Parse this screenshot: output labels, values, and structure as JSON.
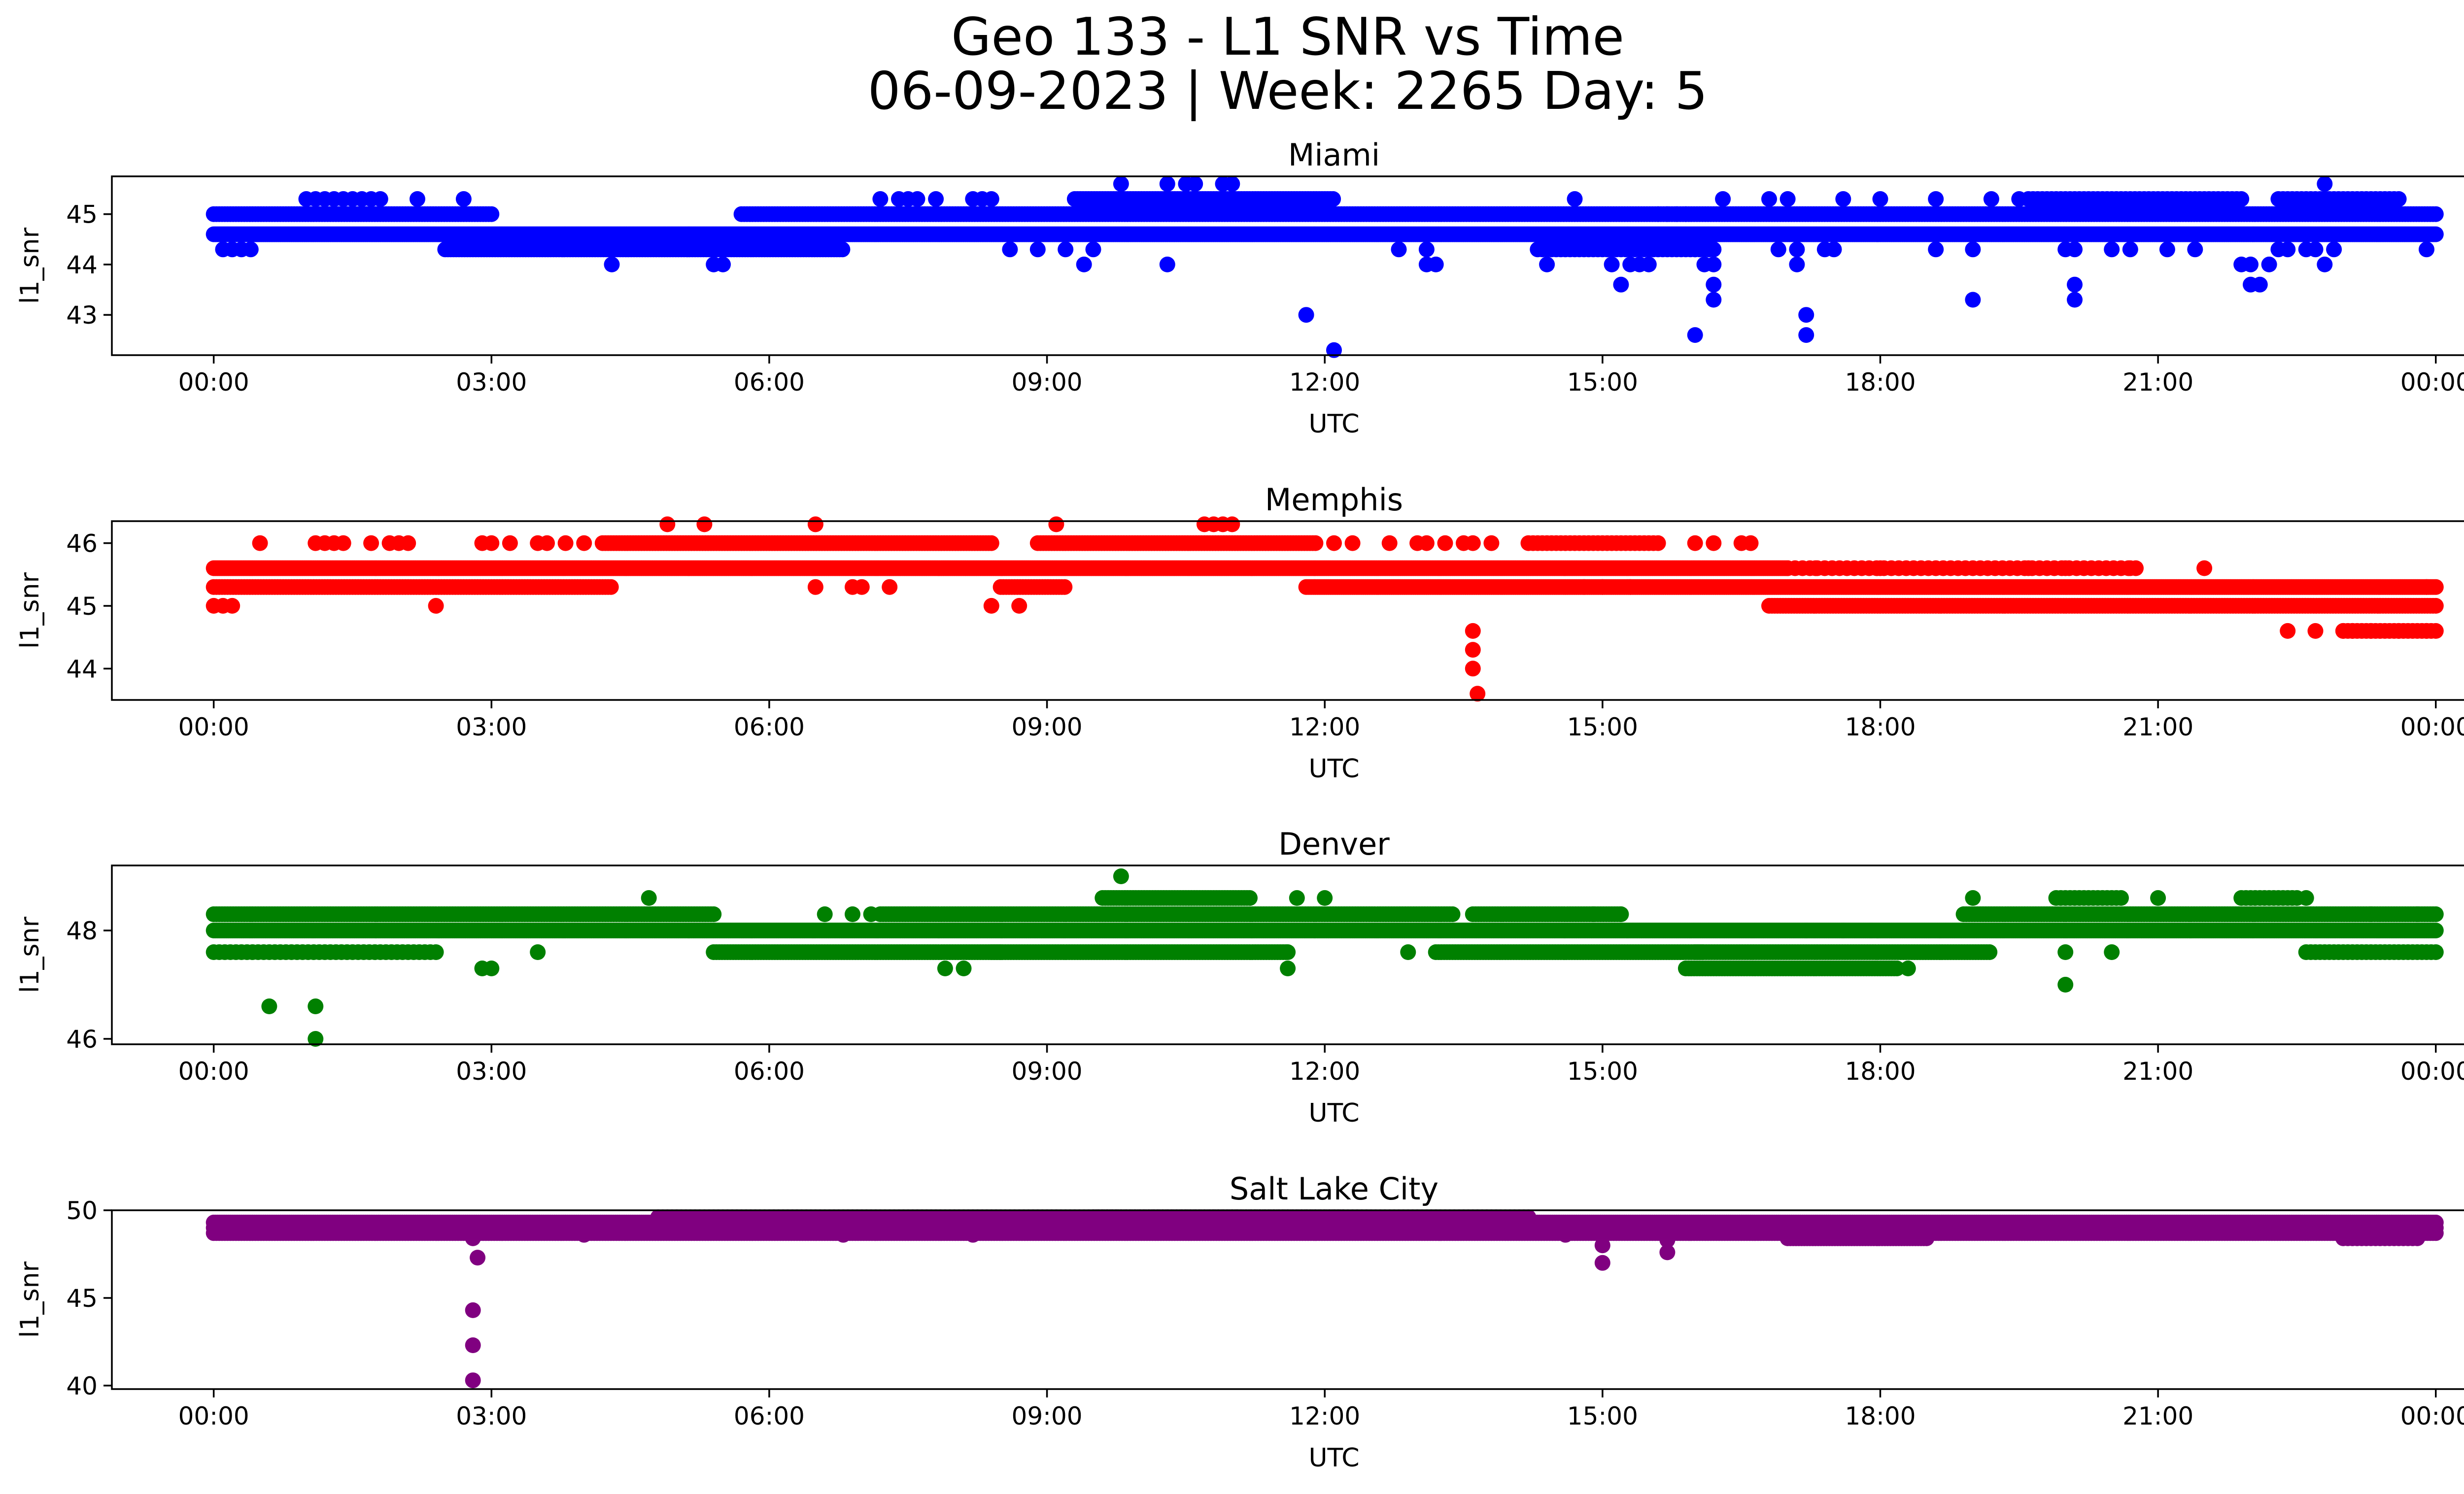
{
  "chart_data": {
    "type": "scatter",
    "title": "Geo 133 - L1 SNR vs Time",
    "subtitle": "06-09-2023 | Week: 2265 Day: 5",
    "x_ticks": [
      "00:00",
      "03:00",
      "06:00",
      "09:00",
      "12:00",
      "15:00",
      "18:00",
      "21:00",
      "00:00"
    ],
    "x_range_hours": [
      -1.1,
      25.3
    ],
    "grid": false,
    "subplots": [
      {
        "title": "Miami",
        "xlabel": "UTC",
        "ylabel": "l1_snr",
        "color": "#0000ff",
        "ylim": [
          42.2,
          45.75
        ],
        "yticks": [
          43,
          44,
          45
        ],
        "bands": [
          {
            "y": 44.6,
            "from": 0.0,
            "to": 24.0,
            "step": 0.02
          },
          {
            "y": 45.0,
            "from": 0.0,
            "to": 3.0,
            "step": 0.03
          },
          {
            "y": 44.3,
            "from": 2.5,
            "to": 6.8,
            "step": 0.03
          },
          {
            "y": 45.0,
            "from": 5.7,
            "to": 24.0,
            "step": 0.03
          },
          {
            "y": 45.3,
            "from": 9.3,
            "to": 12.1,
            "step": 0.03
          },
          {
            "y": 44.3,
            "from": 14.3,
            "to": 16.2,
            "step": 0.05
          },
          {
            "y": 45.3,
            "from": 19.6,
            "to": 21.9,
            "step": 0.05
          },
          {
            "y": 45.3,
            "from": 22.3,
            "to": 23.6,
            "step": 0.05
          }
        ],
        "points": [
          [
            0.1,
            44.3
          ],
          [
            0.2,
            44.3
          ],
          [
            0.3,
            44.3
          ],
          [
            0.4,
            44.3
          ],
          [
            1.0,
            45.3
          ],
          [
            1.1,
            45.3
          ],
          [
            1.2,
            45.3
          ],
          [
            1.3,
            45.3
          ],
          [
            1.4,
            45.3
          ],
          [
            1.5,
            45.3
          ],
          [
            1.6,
            45.3
          ],
          [
            1.7,
            45.3
          ],
          [
            1.8,
            45.3
          ],
          [
            2.2,
            45.3
          ],
          [
            2.7,
            45.3
          ],
          [
            4.3,
            44.0
          ],
          [
            5.4,
            44.0
          ],
          [
            5.5,
            44.0
          ],
          [
            7.2,
            45.3
          ],
          [
            7.4,
            45.3
          ],
          [
            7.5,
            45.3
          ],
          [
            7.6,
            45.3
          ],
          [
            7.8,
            45.3
          ],
          [
            8.2,
            45.3
          ],
          [
            8.3,
            45.3
          ],
          [
            8.4,
            45.3
          ],
          [
            8.6,
            44.3
          ],
          [
            8.9,
            44.3
          ],
          [
            9.2,
            44.3
          ],
          [
            9.4,
            44.0
          ],
          [
            9.5,
            44.3
          ],
          [
            9.8,
            45.6
          ],
          [
            10.3,
            45.6
          ],
          [
            10.5,
            45.6
          ],
          [
            10.6,
            45.6
          ],
          [
            10.9,
            45.6
          ],
          [
            11.0,
            45.6
          ],
          [
            10.3,
            44.0
          ],
          [
            11.8,
            43.0
          ],
          [
            12.1,
            42.3
          ],
          [
            13.1,
            44.3
          ],
          [
            13.1,
            44.0
          ],
          [
            13.2,
            44.0
          ],
          [
            12.8,
            44.3
          ],
          [
            14.4,
            44.0
          ],
          [
            14.7,
            45.3
          ],
          [
            15.1,
            44.0
          ],
          [
            15.2,
            43.6
          ],
          [
            15.3,
            44.0
          ],
          [
            15.4,
            44.0
          ],
          [
            15.5,
            44.0
          ],
          [
            15.6,
            45.0
          ],
          [
            15.7,
            45.0
          ],
          [
            15.8,
            45.0
          ],
          [
            15.9,
            45.0
          ],
          [
            16.0,
            44.3
          ],
          [
            16.0,
            42.6
          ],
          [
            16.1,
            44.0
          ],
          [
            16.2,
            43.6
          ],
          [
            16.2,
            43.3
          ],
          [
            16.2,
            44.0
          ],
          [
            16.3,
            45.3
          ],
          [
            16.8,
            45.3
          ],
          [
            16.9,
            44.3
          ],
          [
            17.0,
            45.3
          ],
          [
            17.1,
            44.0
          ],
          [
            17.1,
            44.3
          ],
          [
            17.2,
            43.0
          ],
          [
            17.2,
            42.6
          ],
          [
            17.4,
            44.3
          ],
          [
            17.5,
            44.3
          ],
          [
            17.6,
            45.3
          ],
          [
            18.0,
            45.3
          ],
          [
            18.6,
            45.3
          ],
          [
            18.6,
            44.3
          ],
          [
            19.0,
            44.3
          ],
          [
            19.0,
            43.3
          ],
          [
            19.2,
            45.3
          ],
          [
            19.5,
            45.3
          ],
          [
            20.0,
            44.3
          ],
          [
            20.1,
            43.6
          ],
          [
            20.1,
            43.3
          ],
          [
            20.1,
            44.3
          ],
          [
            20.5,
            44.3
          ],
          [
            20.7,
            44.3
          ],
          [
            21.1,
            44.3
          ],
          [
            21.4,
            44.3
          ],
          [
            21.9,
            44.0
          ],
          [
            22.0,
            43.6
          ],
          [
            22.0,
            44.0
          ],
          [
            22.1,
            43.6
          ],
          [
            22.2,
            44.0
          ],
          [
            22.3,
            44.3
          ],
          [
            22.4,
            44.3
          ],
          [
            22.6,
            44.3
          ],
          [
            22.7,
            44.3
          ],
          [
            22.8,
            44.0
          ],
          [
            22.8,
            45.6
          ],
          [
            22.9,
            44.3
          ],
          [
            23.9,
            44.3
          ]
        ]
      },
      {
        "title": "Memphis",
        "xlabel": "UTC",
        "ylabel": "l1_snr",
        "color": "#ff0000",
        "ylim": [
          43.5,
          46.35
        ],
        "yticks": [
          44,
          45,
          46
        ],
        "bands": [
          {
            "y": 45.6,
            "from": 0.0,
            "to": 17.0,
            "step": 0.02
          },
          {
            "y": 45.3,
            "from": 0.0,
            "to": 4.3,
            "step": 0.03
          },
          {
            "y": 46.0,
            "from": 4.2,
            "to": 8.4,
            "step": 0.03
          },
          {
            "y": 45.3,
            "from": 8.5,
            "to": 9.2,
            "step": 0.03
          },
          {
            "y": 46.0,
            "from": 8.9,
            "to": 11.9,
            "step": 0.03
          },
          {
            "y": 45.3,
            "from": 11.8,
            "to": 24.0,
            "step": 0.02
          },
          {
            "y": 45.0,
            "from": 16.8,
            "to": 24.0,
            "step": 0.03
          },
          {
            "y": 46.0,
            "from": 14.2,
            "to": 15.6,
            "step": 0.05
          },
          {
            "y": 45.6,
            "from": 17.0,
            "to": 20.8,
            "step": 0.08
          },
          {
            "y": 44.6,
            "from": 23.0,
            "to": 24.0,
            "step": 0.05
          }
        ],
        "points": [
          [
            0.0,
            45.0
          ],
          [
            0.1,
            45.0
          ],
          [
            0.2,
            45.0
          ],
          [
            0.5,
            46.0
          ],
          [
            1.1,
            46.0
          ],
          [
            1.2,
            46.0
          ],
          [
            1.3,
            46.0
          ],
          [
            1.4,
            46.0
          ],
          [
            1.7,
            46.0
          ],
          [
            1.9,
            46.0
          ],
          [
            2.0,
            46.0
          ],
          [
            2.1,
            46.0
          ],
          [
            2.4,
            45.0
          ],
          [
            2.9,
            46.0
          ],
          [
            3.0,
            46.0
          ],
          [
            3.2,
            46.0
          ],
          [
            3.5,
            46.0
          ],
          [
            3.6,
            46.0
          ],
          [
            3.8,
            46.0
          ],
          [
            4.0,
            46.0
          ],
          [
            4.9,
            46.3
          ],
          [
            5.3,
            46.3
          ],
          [
            6.5,
            46.3
          ],
          [
            6.5,
            45.3
          ],
          [
            6.9,
            45.3
          ],
          [
            7.0,
            45.3
          ],
          [
            7.3,
            45.3
          ],
          [
            8.4,
            45.0
          ],
          [
            8.7,
            45.0
          ],
          [
            9.1,
            46.3
          ],
          [
            10.7,
            46.3
          ],
          [
            10.8,
            46.3
          ],
          [
            10.9,
            46.3
          ],
          [
            11.0,
            46.3
          ],
          [
            12.1,
            46.0
          ],
          [
            12.3,
            46.0
          ],
          [
            12.7,
            46.0
          ],
          [
            13.0,
            46.0
          ],
          [
            13.1,
            46.0
          ],
          [
            13.3,
            46.0
          ],
          [
            13.5,
            46.0
          ],
          [
            13.6,
            46.0
          ],
          [
            13.8,
            46.0
          ],
          [
            13.6,
            44.6
          ],
          [
            13.6,
            44.3
          ],
          [
            13.6,
            44.0
          ],
          [
            13.65,
            43.6
          ],
          [
            16.0,
            46.0
          ],
          [
            16.2,
            46.0
          ],
          [
            16.5,
            46.0
          ],
          [
            16.6,
            46.0
          ],
          [
            14.8,
            45.3
          ],
          [
            15.0,
            45.3
          ],
          [
            15.3,
            45.3
          ],
          [
            17.3,
            45.6
          ],
          [
            18.0,
            45.6
          ],
          [
            19.6,
            45.6
          ],
          [
            20.0,
            45.6
          ],
          [
            20.7,
            45.6
          ],
          [
            21.5,
            45.6
          ],
          [
            22.4,
            44.6
          ],
          [
            22.7,
            44.6
          ],
          [
            23.0,
            44.6
          ],
          [
            23.1,
            44.6
          ],
          [
            23.3,
            44.6
          ],
          [
            23.6,
            44.6
          ],
          [
            23.9,
            44.6
          ],
          [
            23.9,
            45.3
          ]
        ]
      },
      {
        "title": "Denver",
        "xlabel": "UTC",
        "ylabel": "l1_snr",
        "color": "#008000",
        "ylim": [
          45.9,
          49.2
        ],
        "yticks": [
          46,
          48
        ],
        "bands": [
          {
            "y": 48.0,
            "from": 0.0,
            "to": 24.0,
            "step": 0.02
          },
          {
            "y": 48.3,
            "from": 0.0,
            "to": 5.4,
            "step": 0.03
          },
          {
            "y": 47.6,
            "from": 0.0,
            "to": 2.4,
            "step": 0.06
          },
          {
            "y": 47.6,
            "from": 5.4,
            "to": 8.5,
            "step": 0.03
          },
          {
            "y": 48.3,
            "from": 7.2,
            "to": 13.4,
            "step": 0.03
          },
          {
            "y": 48.6,
            "from": 9.6,
            "to": 11.2,
            "step": 0.03
          },
          {
            "y": 47.6,
            "from": 8.4,
            "to": 11.6,
            "step": 0.03
          },
          {
            "y": 48.3,
            "from": 13.6,
            "to": 15.2,
            "step": 0.03
          },
          {
            "y": 47.6,
            "from": 13.2,
            "to": 16.1,
            "step": 0.03
          },
          {
            "y": 47.6,
            "from": 16.0,
            "to": 19.2,
            "step": 0.03
          },
          {
            "y": 47.3,
            "from": 15.9,
            "to": 18.2,
            "step": 0.03
          },
          {
            "y": 48.3,
            "from": 18.9,
            "to": 24.0,
            "step": 0.03
          },
          {
            "y": 48.6,
            "from": 19.9,
            "to": 20.6,
            "step": 0.05
          },
          {
            "y": 48.6,
            "from": 21.9,
            "to": 22.5,
            "step": 0.05
          },
          {
            "y": 47.6,
            "from": 22.6,
            "to": 24.0,
            "step": 0.05
          }
        ],
        "points": [
          [
            0.6,
            46.6
          ],
          [
            1.1,
            46.6
          ],
          [
            1.1,
            46.0
          ],
          [
            2.9,
            47.3
          ],
          [
            3.0,
            47.3
          ],
          [
            3.5,
            47.6
          ],
          [
            4.7,
            48.6
          ],
          [
            6.6,
            48.3
          ],
          [
            6.9,
            48.3
          ],
          [
            7.1,
            48.3
          ],
          [
            7.9,
            47.3
          ],
          [
            8.1,
            47.3
          ],
          [
            9.8,
            49.0
          ],
          [
            11.6,
            47.3
          ],
          [
            11.6,
            47.6
          ],
          [
            11.7,
            48.6
          ],
          [
            12.0,
            48.6
          ],
          [
            12.9,
            47.6
          ],
          [
            14.9,
            48.3
          ],
          [
            15.2,
            48.3
          ],
          [
            17.2,
            48.0
          ],
          [
            17.6,
            48.0
          ],
          [
            17.9,
            48.0
          ],
          [
            18.3,
            47.3
          ],
          [
            19.0,
            48.6
          ],
          [
            20.0,
            47.0
          ],
          [
            20.0,
            47.6
          ],
          [
            20.5,
            47.6
          ],
          [
            21.0,
            48.6
          ],
          [
            22.6,
            48.6
          ],
          [
            23.3,
            48.3
          ],
          [
            23.8,
            48.3
          ]
        ]
      },
      {
        "title": "Salt Lake City",
        "xlabel": "UTC",
        "ylabel": "l1_snr",
        "color": "#800080",
        "ylim": [
          39.8,
          50.0
        ],
        "yticks": [
          40,
          45,
          50
        ],
        "bands": [
          {
            "y": 49.0,
            "from": 0.0,
            "to": 24.0,
            "step": 0.015
          },
          {
            "y": 48.7,
            "from": 0.0,
            "to": 24.0,
            "step": 0.03
          },
          {
            "y": 49.3,
            "from": 0.0,
            "to": 24.0,
            "step": 0.02
          },
          {
            "y": 49.6,
            "from": 4.8,
            "to": 14.2,
            "step": 0.05
          },
          {
            "y": 49.6,
            "from": 9.5,
            "to": 12.2,
            "step": 0.03
          },
          {
            "y": 48.4,
            "from": 17.0,
            "to": 18.5,
            "step": 0.03
          },
          {
            "y": 48.4,
            "from": 23.0,
            "to": 23.8,
            "step": 0.05
          }
        ],
        "points": [
          [
            2.8,
            48.4
          ],
          [
            2.85,
            47.3
          ],
          [
            2.8,
            44.3
          ],
          [
            2.8,
            42.3
          ],
          [
            2.8,
            40.3
          ],
          [
            15.0,
            47.0
          ],
          [
            15.0,
            48.0
          ],
          [
            15.7,
            47.6
          ],
          [
            15.7,
            48.3
          ],
          [
            4.0,
            48.6
          ],
          [
            6.8,
            48.6
          ],
          [
            8.2,
            48.6
          ],
          [
            14.6,
            48.6
          ]
        ]
      }
    ]
  }
}
